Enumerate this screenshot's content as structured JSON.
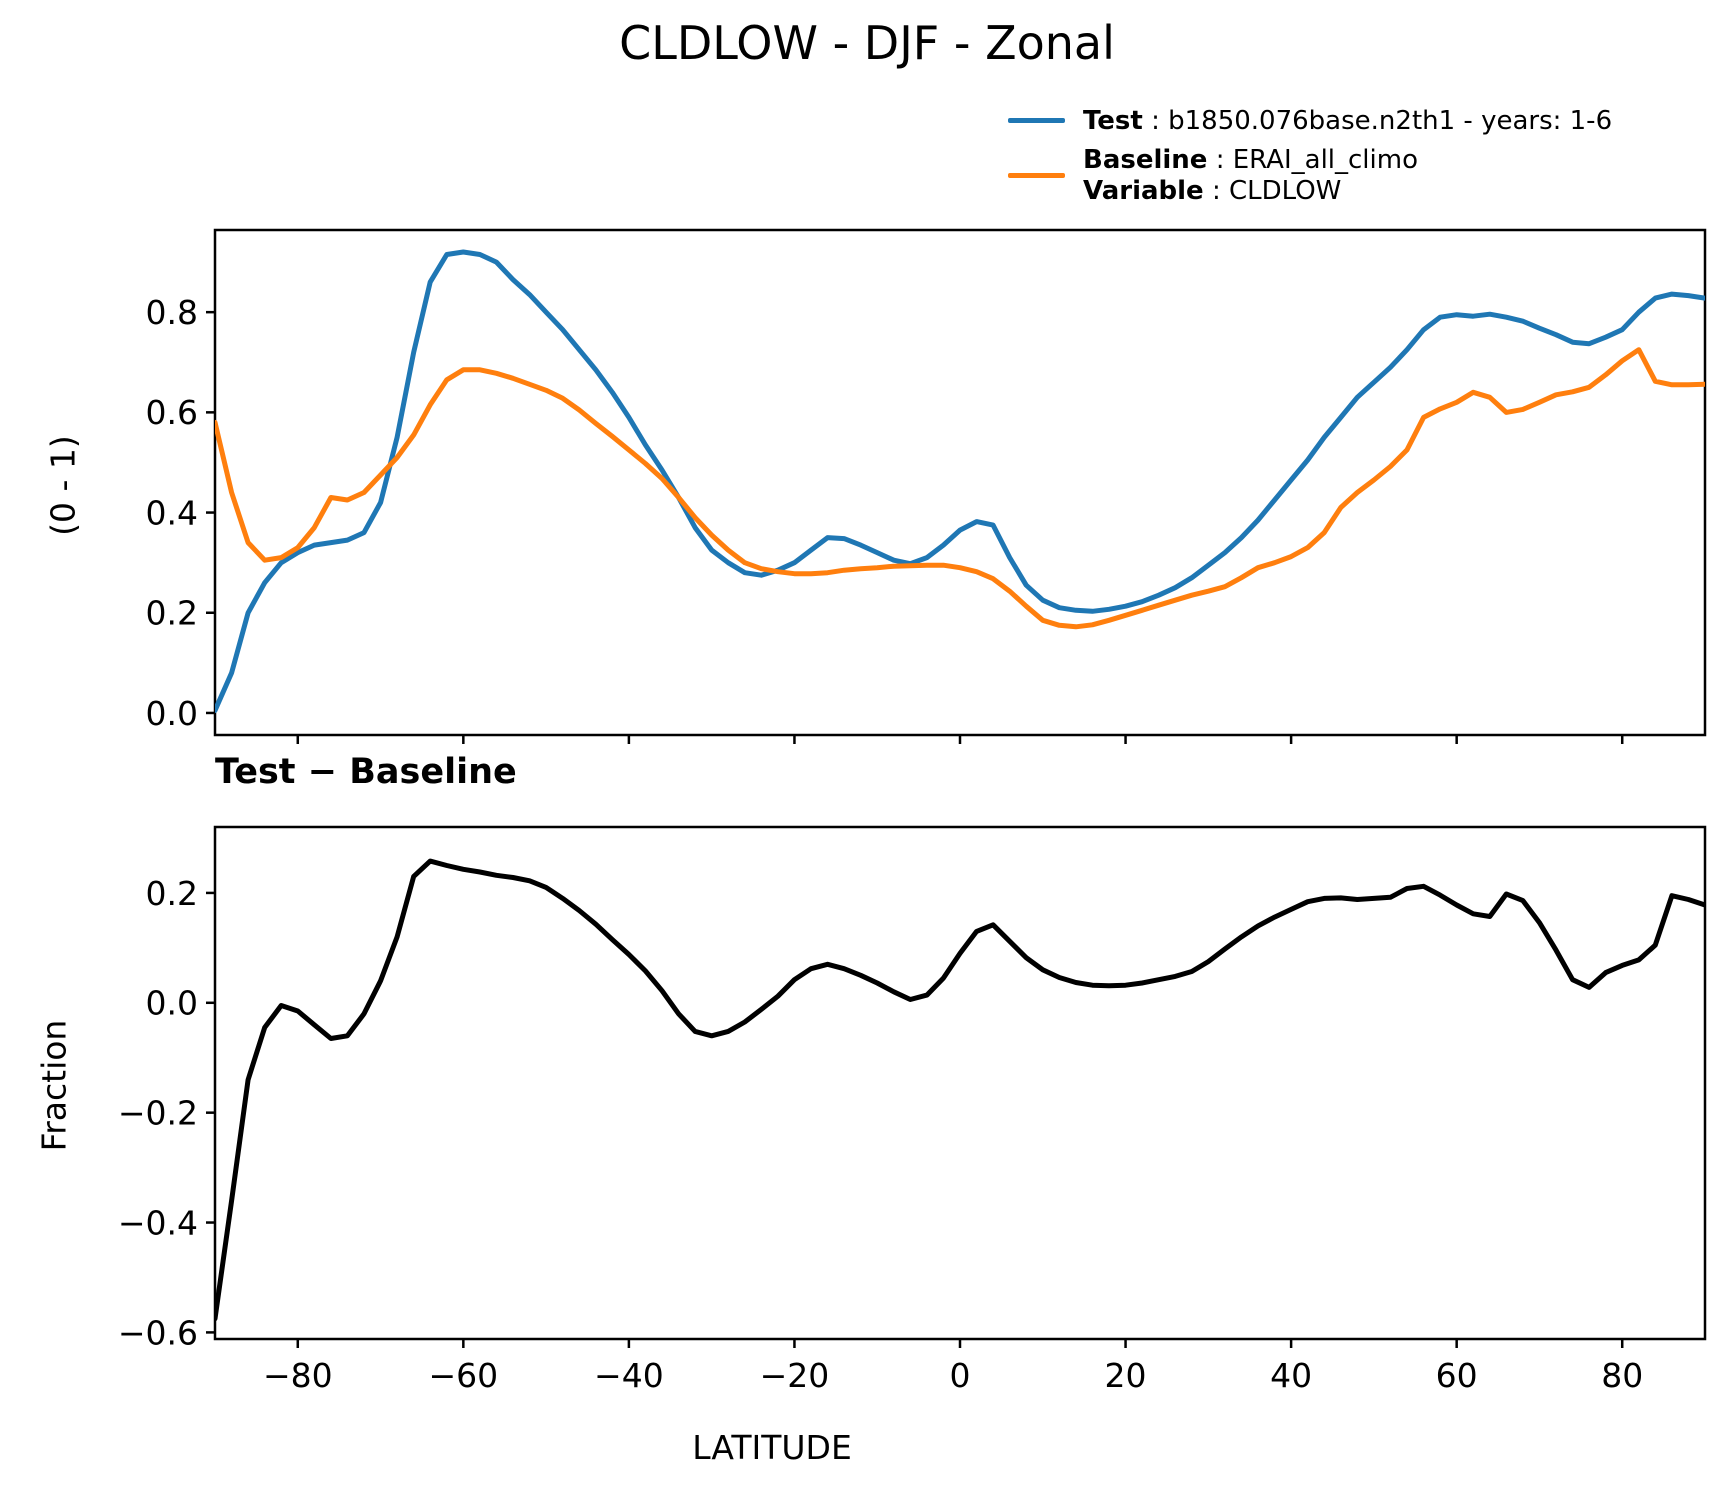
{
  "title": "CLDLOW - DJF - Zonal",
  "legend": {
    "test": {
      "label_bold": "Test",
      "label_rest": " : b1850.076base.n2th1 - years: 1-6",
      "color": "#1f77b4"
    },
    "baseline": {
      "label_bold": "Baseline",
      "label_rest": " : ERAI_all_climo",
      "color": "#ff7f0e"
    },
    "variable": {
      "label_bold": "Variable",
      "label_rest": " : CLDLOW"
    }
  },
  "chart_data": [
    {
      "type": "line",
      "title": "",
      "ylabel": "(0 - 1)",
      "xlabel": "",
      "xlim": [
        -90,
        90
      ],
      "ylim": [
        -0.044,
        0.964
      ],
      "yticks": [
        0.0,
        0.2,
        0.4,
        0.6,
        0.8
      ],
      "yticklabels": [
        "0.0",
        "0.2",
        "0.4",
        "0.6",
        "0.8"
      ],
      "xticks": [
        -80,
        -60,
        -40,
        -20,
        0,
        20,
        40,
        60,
        80
      ],
      "xticklabels": [],
      "grid": false,
      "legend_position": "upper right outside",
      "x": [
        -90,
        -88,
        -86,
        -84,
        -82,
        -80,
        -78,
        -76,
        -74,
        -72,
        -70,
        -68,
        -66,
        -64,
        -62,
        -60,
        -58,
        -56,
        -54,
        -52,
        -50,
        -48,
        -46,
        -44,
        -42,
        -40,
        -38,
        -36,
        -34,
        -32,
        -30,
        -28,
        -26,
        -24,
        -22,
        -20,
        -18,
        -16,
        -14,
        -12,
        -10,
        -8,
        -6,
        -4,
        -2,
        0,
        2,
        4,
        6,
        8,
        10,
        12,
        14,
        16,
        18,
        20,
        22,
        24,
        26,
        28,
        30,
        32,
        34,
        36,
        38,
        40,
        42,
        44,
        46,
        48,
        50,
        52,
        54,
        56,
        58,
        60,
        62,
        64,
        66,
        68,
        70,
        72,
        74,
        76,
        78,
        80,
        82,
        84,
        86,
        88,
        90
      ],
      "series": [
        {
          "name": "Test",
          "color": "#1f77b4",
          "values": [
            0.005,
            0.08,
            0.2,
            0.26,
            0.3,
            0.32,
            0.335,
            0.34,
            0.345,
            0.36,
            0.42,
            0.55,
            0.72,
            0.86,
            0.915,
            0.92,
            0.915,
            0.9,
            0.865,
            0.835,
            0.8,
            0.765,
            0.725,
            0.685,
            0.64,
            0.59,
            0.535,
            0.485,
            0.43,
            0.37,
            0.325,
            0.3,
            0.28,
            0.275,
            0.285,
            0.3,
            0.325,
            0.35,
            0.348,
            0.335,
            0.32,
            0.305,
            0.298,
            0.31,
            0.335,
            0.365,
            0.382,
            0.375,
            0.31,
            0.255,
            0.225,
            0.21,
            0.205,
            0.203,
            0.207,
            0.213,
            0.222,
            0.235,
            0.25,
            0.27,
            0.295,
            0.32,
            0.35,
            0.385,
            0.425,
            0.465,
            0.505,
            0.55,
            0.59,
            0.63,
            0.66,
            0.69,
            0.725,
            0.765,
            0.79,
            0.795,
            0.792,
            0.796,
            0.79,
            0.782,
            0.768,
            0.755,
            0.74,
            0.737,
            0.75,
            0.765,
            0.8,
            0.828,
            0.836,
            0.833,
            0.828
          ]
        },
        {
          "name": "Baseline",
          "color": "#ff7f0e",
          "values": [
            0.58,
            0.44,
            0.34,
            0.305,
            0.31,
            0.33,
            0.37,
            0.43,
            0.425,
            0.44,
            0.475,
            0.51,
            0.555,
            0.615,
            0.665,
            0.685,
            0.685,
            0.678,
            0.668,
            0.656,
            0.644,
            0.628,
            0.605,
            0.578,
            0.552,
            0.525,
            0.498,
            0.468,
            0.43,
            0.39,
            0.355,
            0.325,
            0.3,
            0.288,
            0.282,
            0.278,
            0.278,
            0.28,
            0.285,
            0.288,
            0.29,
            0.293,
            0.294,
            0.295,
            0.295,
            0.29,
            0.282,
            0.268,
            0.243,
            0.213,
            0.185,
            0.175,
            0.172,
            0.176,
            0.185,
            0.195,
            0.205,
            0.215,
            0.225,
            0.235,
            0.243,
            0.252,
            0.27,
            0.29,
            0.3,
            0.312,
            0.33,
            0.36,
            0.41,
            0.44,
            0.465,
            0.492,
            0.525,
            0.59,
            0.607,
            0.62,
            0.64,
            0.63,
            0.6,
            0.606,
            0.62,
            0.635,
            0.641,
            0.65,
            0.675,
            0.703,
            0.725,
            0.662,
            0.655,
            0.655,
            0.656
          ]
        }
      ]
    },
    {
      "type": "line",
      "title": "Test − Baseline",
      "ylabel": "Fraction",
      "xlabel": "LATITUDE",
      "xlim": [
        -90,
        90
      ],
      "ylim": [
        -0.612,
        0.32
      ],
      "yticks": [
        0.2,
        0.0,
        -0.2,
        -0.4,
        -0.6
      ],
      "yticklabels": [
        "0.2",
        "0.0",
        "−0.2",
        "−0.4",
        "−0.6"
      ],
      "xticks": [
        -80,
        -60,
        -40,
        -20,
        0,
        20,
        40,
        60,
        80
      ],
      "xticklabels": [
        "−80",
        "−60",
        "−40",
        "−20",
        "0",
        "20",
        "40",
        "60",
        "80"
      ],
      "grid": false,
      "x": [
        -90,
        -88,
        -86,
        -84,
        -82,
        -80,
        -78,
        -76,
        -74,
        -72,
        -70,
        -68,
        -66,
        -64,
        -62,
        -60,
        -58,
        -56,
        -54,
        -52,
        -50,
        -48,
        -46,
        -44,
        -42,
        -40,
        -38,
        -36,
        -34,
        -32,
        -30,
        -28,
        -26,
        -24,
        -22,
        -20,
        -18,
        -16,
        -14,
        -12,
        -10,
        -8,
        -6,
        -4,
        -2,
        0,
        2,
        4,
        6,
        8,
        10,
        12,
        14,
        16,
        18,
        20,
        22,
        24,
        26,
        28,
        30,
        32,
        34,
        36,
        38,
        40,
        42,
        44,
        46,
        48,
        50,
        52,
        54,
        56,
        58,
        60,
        62,
        64,
        66,
        68,
        70,
        72,
        74,
        76,
        78,
        80,
        82,
        84,
        86,
        88,
        90
      ],
      "series": [
        {
          "name": "Test - Baseline",
          "color": "#000000",
          "values": [
            -0.575,
            -0.36,
            -0.14,
            -0.045,
            -0.005,
            -0.015,
            -0.04,
            -0.065,
            -0.06,
            -0.02,
            0.04,
            0.12,
            0.23,
            0.258,
            0.25,
            0.243,
            0.238,
            0.232,
            0.228,
            0.222,
            0.21,
            0.19,
            0.168,
            0.143,
            0.115,
            0.088,
            0.058,
            0.022,
            -0.02,
            -0.052,
            -0.06,
            -0.052,
            -0.035,
            -0.012,
            0.012,
            0.042,
            0.062,
            0.07,
            0.062,
            0.05,
            0.036,
            0.02,
            0.006,
            0.014,
            0.045,
            0.09,
            0.13,
            0.142,
            0.112,
            0.082,
            0.06,
            0.046,
            0.037,
            0.032,
            0.031,
            0.032,
            0.036,
            0.042,
            0.048,
            0.057,
            0.075,
            0.098,
            0.12,
            0.14,
            0.156,
            0.17,
            0.184,
            0.19,
            0.191,
            0.188,
            0.19,
            0.192,
            0.208,
            0.212,
            0.196,
            0.178,
            0.162,
            0.157,
            0.198,
            0.186,
            0.146,
            0.096,
            0.042,
            0.028,
            0.055,
            0.068,
            0.078,
            0.105,
            0.195,
            0.188,
            0.178
          ]
        }
      ]
    }
  ]
}
